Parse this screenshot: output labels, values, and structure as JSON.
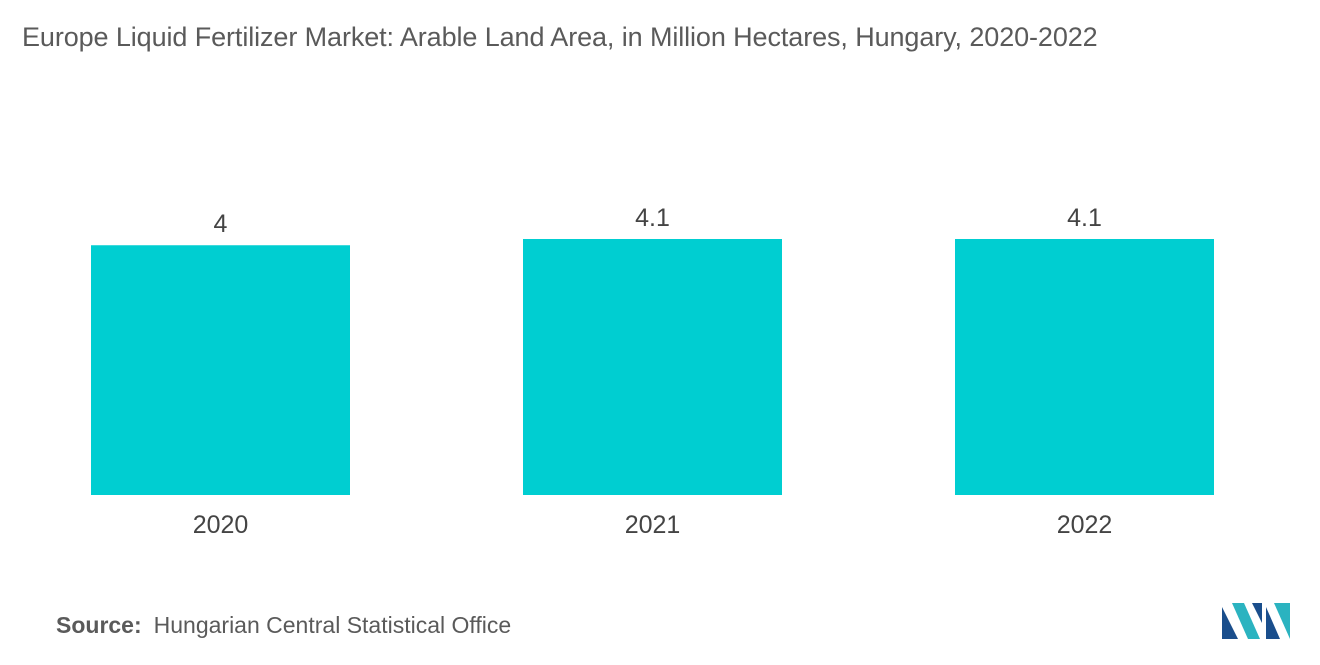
{
  "chart_data": {
    "type": "bar",
    "title": "Europe Liquid Fertilizer Market: Arable Land Area, in Million Hectares, Hungary, 2020-2022",
    "xlabel": "",
    "ylabel": "",
    "categories": [
      "2020",
      "2021",
      "2022"
    ],
    "values": [
      4,
      4.1,
      4.1
    ],
    "value_labels": [
      "4",
      "4.1",
      "4.1"
    ],
    "ylim": [
      0,
      4.1
    ],
    "grid": false,
    "legend": "none",
    "bar_color": "#00CED1"
  },
  "footer": {
    "source_label": "Source:",
    "source_text": "Hungarian Central Statistical Office"
  },
  "logo": {
    "icon": "mordor-intelligence-logo",
    "colors": [
      "#1a4e8c",
      "#2bb3c0"
    ]
  }
}
